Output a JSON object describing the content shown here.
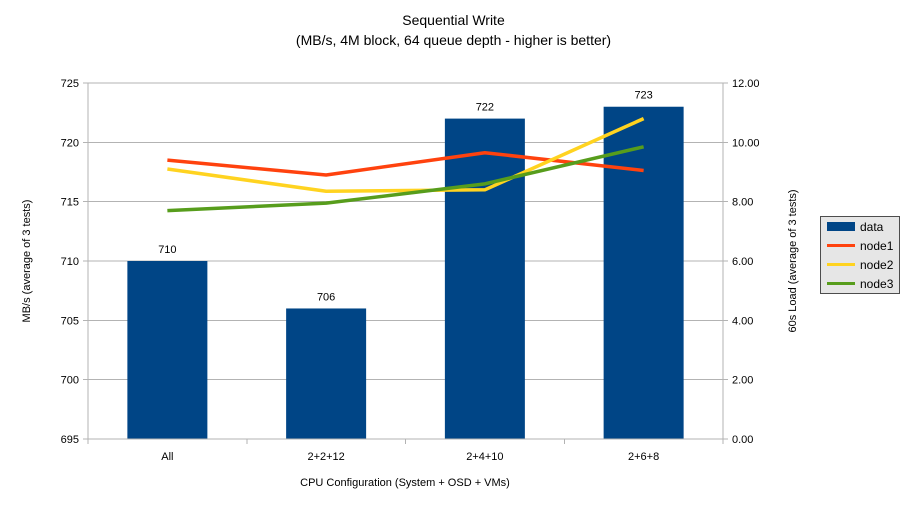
{
  "chart_data": {
    "type": "bar+line",
    "title": "Sequential Write",
    "subtitle": "(MB/s, 4M block, 64 queue depth - higher is better)",
    "categories": [
      "All",
      "2+2+12",
      "2+4+10",
      "2+6+8"
    ],
    "bar_series": {
      "name": "data",
      "color": "#004586",
      "axis": "left",
      "values": [
        710,
        706,
        722,
        723
      ],
      "data_labels": [
        "710",
        "706",
        "722",
        "723"
      ]
    },
    "line_series": [
      {
        "name": "node1",
        "color": "#FF420E",
        "axis": "right",
        "values": [
          9.4,
          8.9,
          9.65,
          9.05
        ]
      },
      {
        "name": "node2",
        "color": "#FFD320",
        "axis": "right",
        "values": [
          9.1,
          8.35,
          8.4,
          10.8
        ]
      },
      {
        "name": "node3",
        "color": "#579D1C",
        "axis": "right",
        "values": [
          7.7,
          7.95,
          8.6,
          9.85
        ]
      }
    ],
    "left_axis": {
      "title": "MB/s (average of 3 tests)",
      "min": 695,
      "max": 725,
      "ticks": [
        695,
        700,
        705,
        710,
        715,
        720,
        725
      ],
      "tick_labels": [
        "695",
        "700",
        "705",
        "710",
        "715",
        "720",
        "725"
      ]
    },
    "right_axis": {
      "title": "60s Load (average of 3 tests)",
      "min": 0,
      "max": 12,
      "ticks": [
        0,
        2,
        4,
        6,
        8,
        10,
        12
      ],
      "tick_labels": [
        "0.00",
        "2.00",
        "4.00",
        "6.00",
        "8.00",
        "10.00",
        "12.00"
      ]
    },
    "x_axis": {
      "title": "CPU Configuration (System + OSD + VMs)"
    },
    "grid": "horizontal-only",
    "legend": {
      "position": "right"
    },
    "colors": {
      "background": "#ffffff",
      "grid": "#b3b3b3",
      "axis": "#b3b3b3",
      "text": "#000000",
      "legend_bg": "#e6e6e6",
      "legend_border": "#4d4d4d"
    }
  }
}
